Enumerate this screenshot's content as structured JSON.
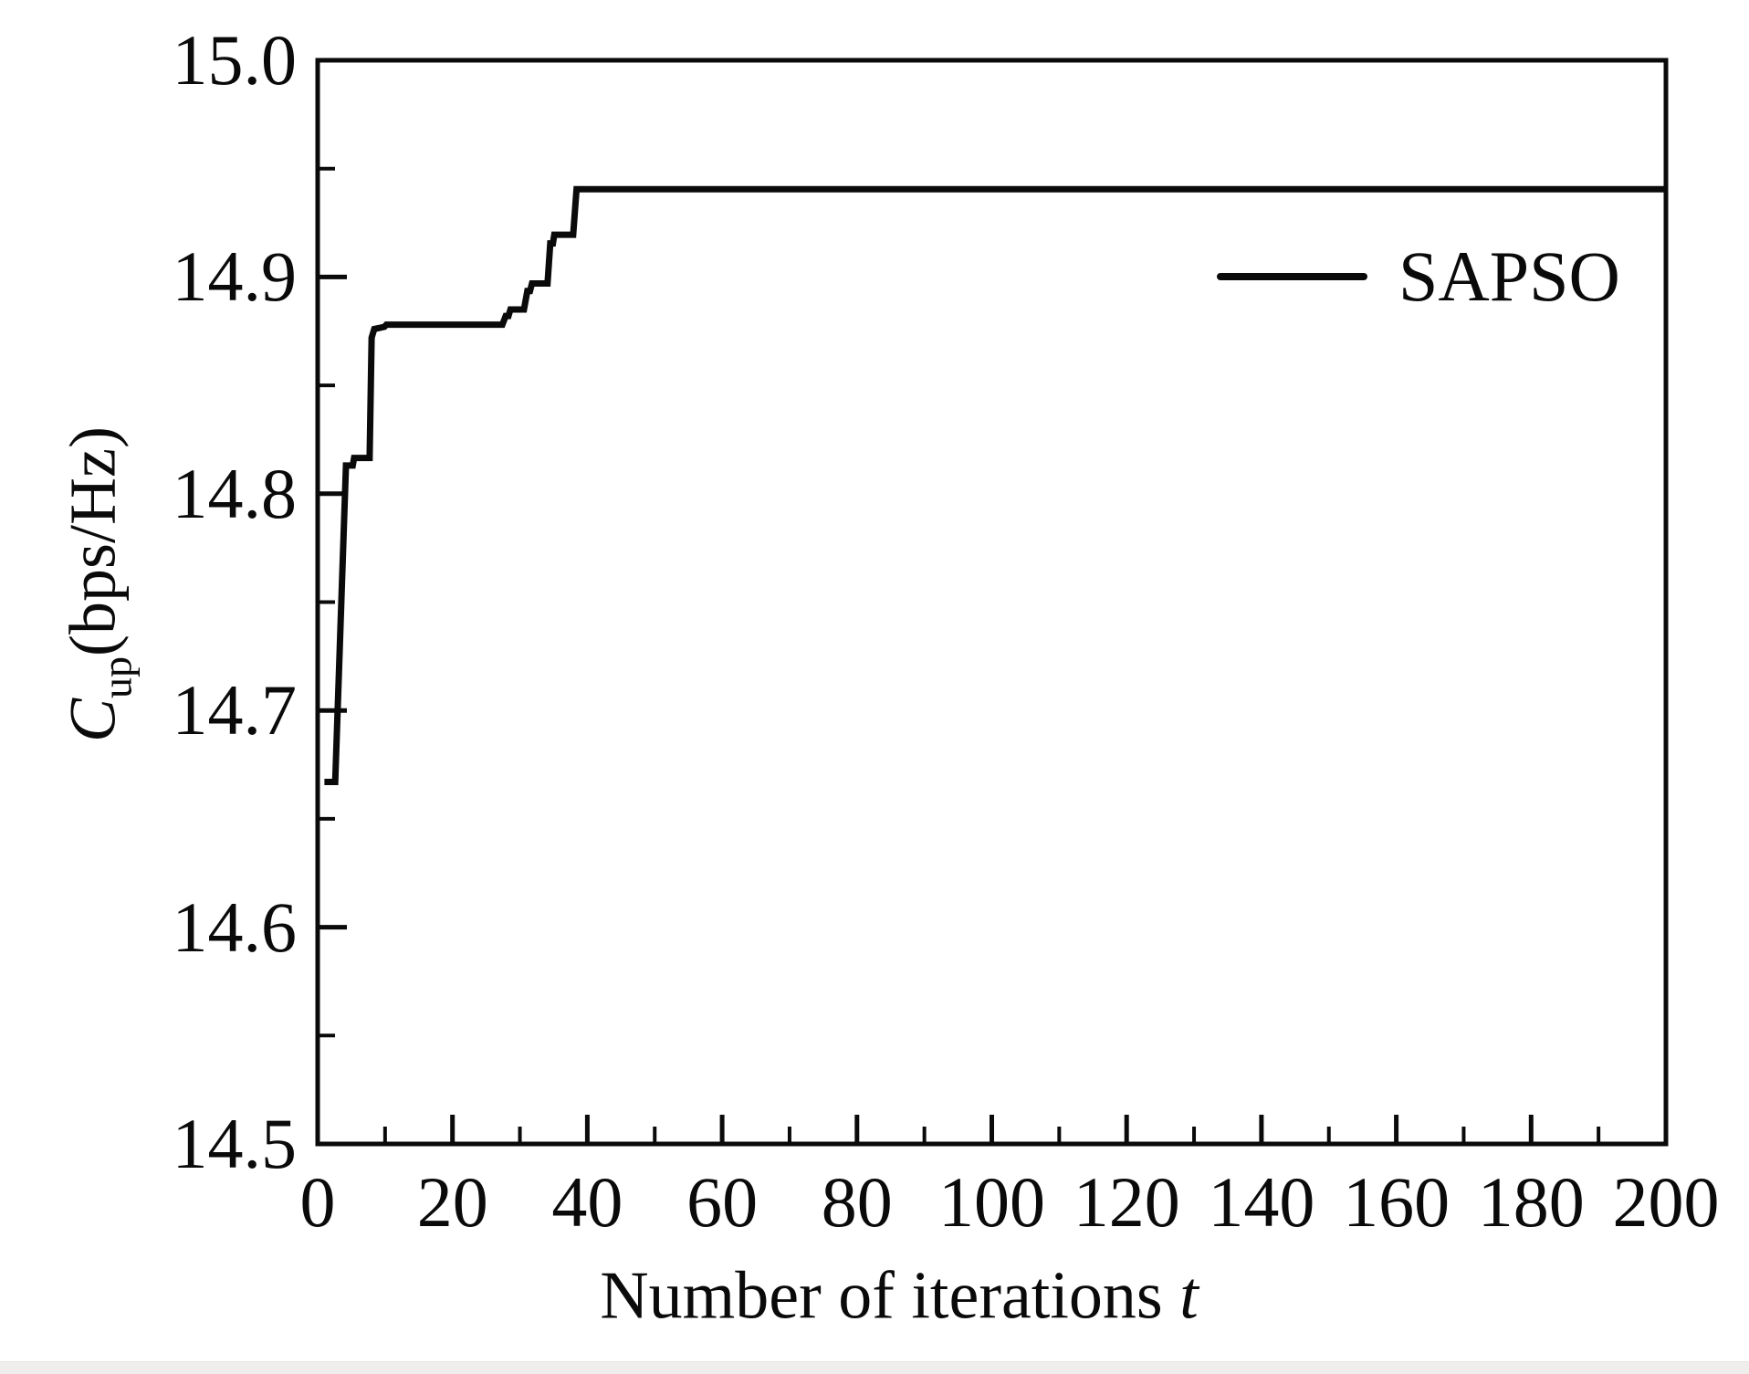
{
  "figure": {
    "background": "#ffffff",
    "ink_color": "#0a0a0a"
  },
  "chart_data": {
    "type": "line",
    "title": "",
    "xlabel": {
      "text": "Number of iterations",
      "var": "t"
    },
    "ylabel": {
      "var": "C",
      "sub": "up",
      "unit": "(bps/Hz)"
    },
    "xlim": [
      0,
      200
    ],
    "ylim": [
      14.5,
      15.0
    ],
    "grid": false,
    "x_major_ticks": {
      "values": [
        0,
        20,
        40,
        60,
        80,
        100,
        120,
        140,
        160,
        180,
        200
      ],
      "labels": [
        "0",
        "20",
        "40",
        "60",
        "80",
        "100",
        "120",
        "140",
        "160",
        "180",
        "200"
      ]
    },
    "x_minor_ticks": [
      10,
      30,
      50,
      70,
      90,
      110,
      130,
      150,
      170,
      190
    ],
    "y_major_ticks": {
      "values": [
        15.0,
        14.9,
        14.8,
        14.7,
        14.6,
        14.5
      ],
      "labels": [
        "15.0",
        "14.9",
        "14.8",
        "14.7",
        "14.6",
        "14.5"
      ]
    },
    "y_minor_ticks": [
      14.95,
      14.85,
      14.75,
      14.65,
      14.55
    ],
    "legend": {
      "position": "upper right",
      "entries": [
        {
          "label": "SAPSO",
          "color": "#0a0a0a",
          "style": "solid"
        }
      ]
    },
    "series": [
      {
        "name": "SAPSO",
        "color": "#0a0a0a",
        "points": [
          [
            1,
            14.667
          ],
          [
            2.6,
            14.667
          ],
          [
            4.2,
            14.813
          ],
          [
            5.2,
            14.813
          ],
          [
            5.4,
            14.8165
          ],
          [
            7.7,
            14.8165
          ],
          [
            8.0,
            14.872
          ],
          [
            8.4,
            14.876
          ],
          [
            9.9,
            14.877
          ],
          [
            10.2,
            14.878
          ],
          [
            27.4,
            14.878
          ],
          [
            27.9,
            14.882
          ],
          [
            28.3,
            14.882
          ],
          [
            28.6,
            14.885
          ],
          [
            30.6,
            14.885
          ],
          [
            31.1,
            14.8935
          ],
          [
            31.5,
            14.8935
          ],
          [
            31.8,
            14.897
          ],
          [
            34.1,
            14.897
          ],
          [
            34.5,
            14.9155
          ],
          [
            34.9,
            14.9155
          ],
          [
            35.1,
            14.9195
          ],
          [
            37.9,
            14.9195
          ],
          [
            38.4,
            14.9405
          ],
          [
            200,
            14.9405
          ]
        ]
      }
    ]
  }
}
